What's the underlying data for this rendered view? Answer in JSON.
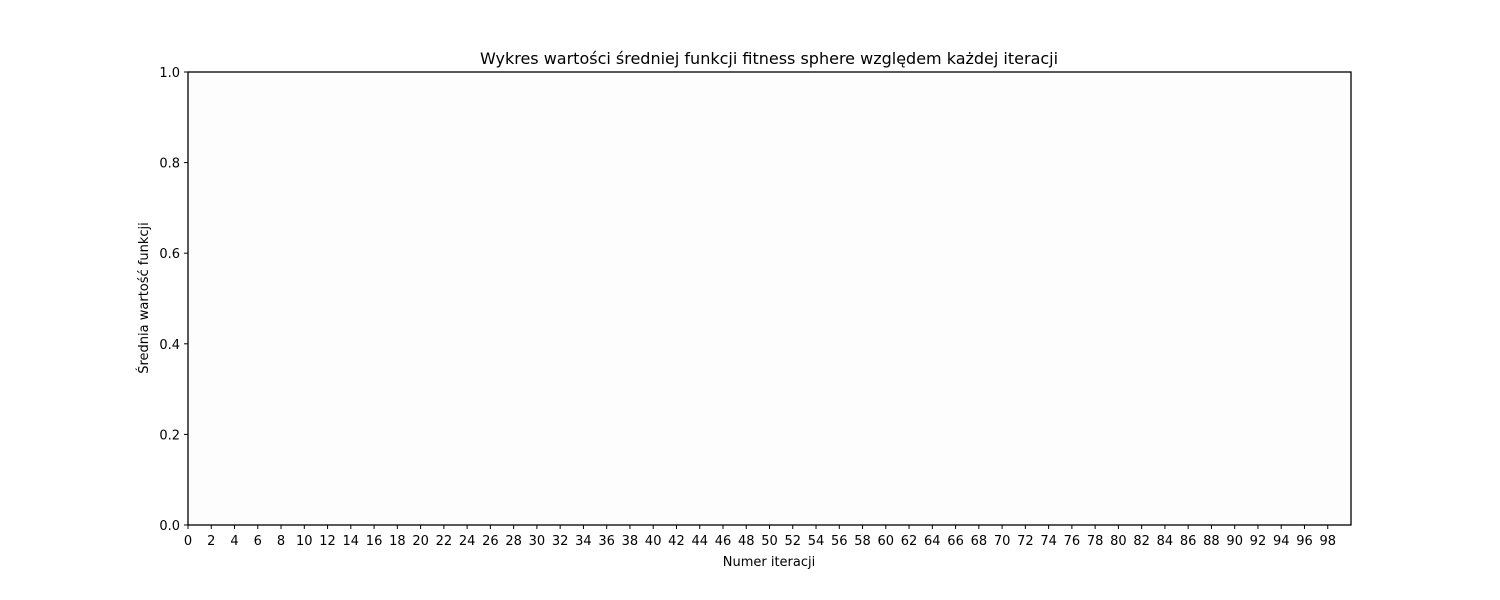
{
  "chart_data": {
    "type": "line",
    "title": "Wykres wartości średniej funkcji fitness sphere względem każdej iteracji",
    "xlabel": "Numer iteracji",
    "ylabel": "Średnia wartość funkcji",
    "xlim": [
      0,
      100
    ],
    "ylim": [
      0,
      1
    ],
    "x_ticks": [
      0,
      2,
      4,
      6,
      8,
      10,
      12,
      14,
      16,
      18,
      20,
      22,
      24,
      26,
      28,
      30,
      32,
      34,
      36,
      38,
      40,
      42,
      44,
      46,
      48,
      50,
      52,
      54,
      56,
      58,
      60,
      62,
      64,
      66,
      68,
      70,
      72,
      74,
      76,
      78,
      80,
      82,
      84,
      86,
      88,
      90,
      92,
      94,
      96,
      98
    ],
    "y_ticks": [
      0.0,
      0.2,
      0.4,
      0.6,
      0.8,
      1.0
    ],
    "y_tick_labels": [
      "0.0",
      "0.2",
      "0.4",
      "0.6",
      "0.8",
      "1.0"
    ],
    "grid": false,
    "series": [],
    "colors": {
      "figure_bg": "#ffffff",
      "plot_bg": "#fdfdfd",
      "axis": "#000000",
      "text": "#000000"
    }
  }
}
